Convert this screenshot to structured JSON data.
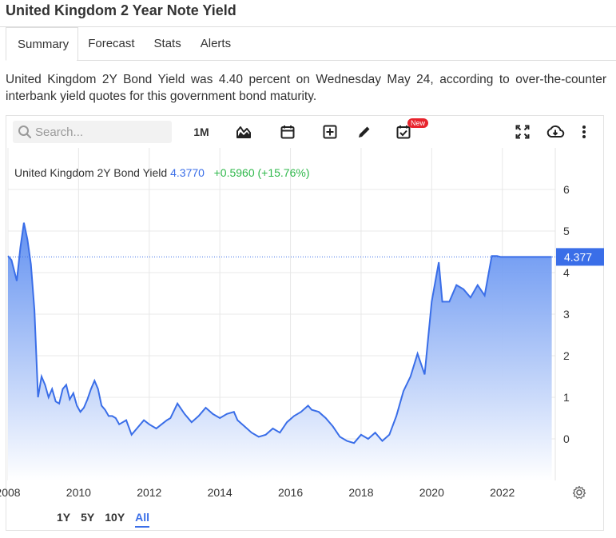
{
  "page": {
    "title": "United Kingdom 2 Year Note Yield",
    "tabs": [
      {
        "label": "Summary",
        "active": true
      },
      {
        "label": "Forecast",
        "active": false
      },
      {
        "label": "Stats",
        "active": false
      },
      {
        "label": "Alerts",
        "active": false
      }
    ],
    "summary": "United Kingdom 2Y Bond Yield was 4.40 percent on Wednesday May 24, according to over-the-counter interbank yield quotes for this government bond maturity."
  },
  "toolbar": {
    "search_placeholder": "Search...",
    "interval_label": "1M",
    "new_badge": "New",
    "icons": [
      "chart-type-icon",
      "calendar-icon",
      "add-icon",
      "draw-icon",
      "events-icon",
      "fullscreen-icon",
      "download-icon",
      "more-icon"
    ]
  },
  "legend": {
    "name": "United Kingdom 2Y Bond Yield",
    "value": "4.3770",
    "change": "+0.5960 (+15.76%)"
  },
  "range_buttons": [
    {
      "label": "1Y",
      "active": false
    },
    {
      "label": "5Y",
      "active": false
    },
    {
      "label": "10Y",
      "active": false
    },
    {
      "label": "All",
      "active": true
    }
  ],
  "colors": {
    "line": "#3a6ee8",
    "area_top": "#5b8cf0",
    "area_bottom": "#ffffff",
    "positive": "#2fb84b",
    "badge": "#e8242d"
  },
  "chart_data": {
    "type": "area",
    "title": "",
    "xlabel": "",
    "ylabel": "",
    "xlim": [
      2008.0,
      2023.5
    ],
    "ylim": [
      -1,
      7
    ],
    "y_ticks": [
      "6",
      "5",
      "4",
      "3",
      "2",
      "1",
      "0"
    ],
    "y_tick_values": [
      6,
      5,
      4,
      3,
      2,
      1,
      0
    ],
    "x_ticks": [
      "2008",
      "2010",
      "2012",
      "2014",
      "2016",
      "2018",
      "2020",
      "2022"
    ],
    "x_tick_values": [
      2008,
      2010,
      2012,
      2014,
      2016,
      2018,
      2020,
      2022
    ],
    "last_value_label": "4.377",
    "last_value": 4.377,
    "grid": true,
    "series": [
      {
        "x": [
          2008.0,
          2008.1,
          2008.25,
          2008.35,
          2008.45,
          2008.55,
          2008.65,
          2008.75,
          2008.85,
          2008.95,
          2009.05,
          2009.15,
          2009.25,
          2009.35,
          2009.45,
          2009.55,
          2009.65,
          2009.75,
          2009.85,
          2009.95,
          2010.05,
          2010.15,
          2010.25,
          2010.35,
          2010.45,
          2010.55,
          2010.65,
          2010.75,
          2010.85,
          2010.95,
          2011.05,
          2011.15,
          2011.25,
          2011.35,
          2011.5,
          2011.65,
          2011.85,
          2012.0,
          2012.2,
          2012.35,
          2012.5,
          2012.6,
          2012.8,
          2013.0,
          2013.2,
          2013.4,
          2013.6,
          2013.8,
          2014.0,
          2014.2,
          2014.4,
          2014.5,
          2014.7,
          2014.9,
          2015.1,
          2015.3,
          2015.5,
          2015.7,
          2015.9,
          2016.1,
          2016.3,
          2016.5,
          2016.6,
          2016.8,
          2017.0,
          2017.2,
          2017.4,
          2017.6,
          2017.8,
          2018.0,
          2018.2,
          2018.4,
          2018.6,
          2018.8,
          2019.0,
          2019.2,
          2019.4,
          2019.6,
          2019.8,
          2020.0,
          2020.2,
          2020.3,
          2020.5,
          2020.7,
          2020.9,
          2021.1,
          2021.3,
          2021.5,
          2021.7,
          2021.85,
          2021.95,
          2022.1,
          2022.2,
          2022.35,
          2022.5,
          2022.6,
          2022.7,
          2022.78,
          2022.86,
          2022.95,
          2023.05,
          2023.15,
          2023.25,
          2023.35,
          2023.4
        ],
        "y": [
          4.4,
          4.3,
          3.8,
          4.6,
          5.2,
          4.8,
          4.2,
          3.1,
          1.0,
          1.5,
          1.3,
          1.0,
          1.2,
          0.9,
          0.85,
          1.2,
          1.3,
          0.95,
          1.1,
          0.8,
          0.65,
          0.75,
          0.95,
          1.2,
          1.4,
          1.2,
          0.8,
          0.7,
          0.55,
          0.55,
          0.5,
          0.35,
          0.4,
          0.45,
          0.1,
          0.25,
          0.45,
          0.35,
          0.25,
          0.35,
          0.45,
          0.5,
          0.85,
          0.6,
          0.4,
          0.55,
          0.75,
          0.6,
          0.5,
          0.6,
          0.65,
          0.45,
          0.3,
          0.15,
          0.05,
          0.1,
          0.25,
          0.15,
          0.4,
          0.55,
          0.65,
          0.8,
          0.7,
          0.65,
          0.5,
          0.3,
          0.05,
          -0.05,
          -0.1,
          0.1,
          0.0,
          0.15,
          -0.05,
          0.1,
          0.55,
          1.15,
          1.5,
          2.05,
          1.55,
          3.3,
          4.25,
          3.3,
          3.3,
          3.7,
          3.6,
          3.4,
          3.7,
          3.45,
          4.4,
          4.4,
          4.377,
          4.377,
          4.377,
          4.377,
          4.377,
          4.377,
          4.377,
          4.377,
          4.377,
          4.377,
          4.377,
          4.377,
          4.377,
          4.377,
          4.377
        ]
      }
    ]
  }
}
